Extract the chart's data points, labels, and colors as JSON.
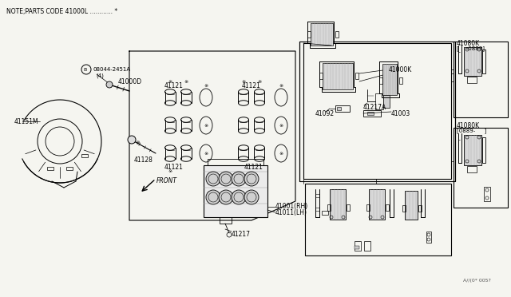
{
  "title": "NOTE;PARTS CODE 41000L ............ *",
  "bg_color": "#f5f5f0",
  "line_color": "#000000",
  "text_color": "#000000",
  "watermark": "A//(0* 005?",
  "fig_width": 6.4,
  "fig_height": 3.72,
  "dpi": 100,
  "note_text": "NOTE;PARTS CODE 41000L ............ *"
}
